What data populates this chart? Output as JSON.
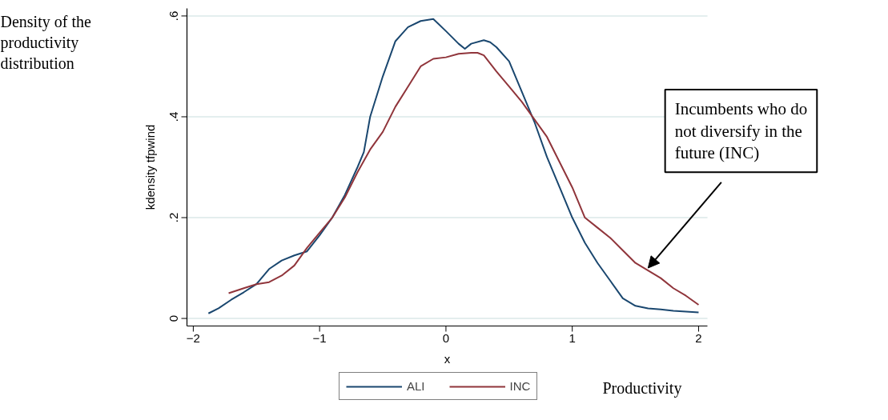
{
  "chart_data": {
    "type": "line",
    "xlabel": "x",
    "ylabel": "kdensity tfpwind",
    "xlim": [
      -2.05,
      2.07
    ],
    "ylim": [
      -0.015,
      0.615
    ],
    "xticks": [
      {
        "value": -2,
        "label": "−2"
      },
      {
        "value": -1,
        "label": "−1"
      },
      0,
      1,
      2
    ],
    "yticks": [
      0,
      {
        "value": 0.2,
        "label": ".2"
      },
      {
        "value": 0.4,
        "label": ".4"
      },
      {
        "value": 0.6,
        "label": ".6"
      }
    ],
    "grid": "y",
    "legend": "bottom",
    "line_style": "solid",
    "series": [
      {
        "name": "ALI",
        "color": "#1a476f",
        "x": [
          -1.88,
          -1.8,
          -1.7,
          -1.6,
          -1.5,
          -1.4,
          -1.3,
          -1.2,
          -1.1,
          -1.0,
          -0.9,
          -0.8,
          -0.7,
          -0.65,
          -0.6,
          -0.5,
          -0.4,
          -0.3,
          -0.2,
          -0.1,
          0.0,
          0.1,
          0.15,
          0.2,
          0.3,
          0.35,
          0.4,
          0.5,
          0.6,
          0.7,
          0.8,
          0.9,
          1.0,
          1.1,
          1.2,
          1.3,
          1.4,
          1.5,
          1.6,
          1.7,
          1.8,
          2.0
        ],
        "values": [
          0.01,
          0.02,
          0.037,
          0.052,
          0.068,
          0.098,
          0.115,
          0.125,
          0.133,
          0.165,
          0.2,
          0.245,
          0.3,
          0.33,
          0.4,
          0.48,
          0.55,
          0.578,
          0.59,
          0.594,
          0.57,
          0.545,
          0.535,
          0.545,
          0.552,
          0.548,
          0.538,
          0.51,
          0.45,
          0.39,
          0.32,
          0.26,
          0.2,
          0.15,
          0.11,
          0.075,
          0.04,
          0.025,
          0.02,
          0.018,
          0.015,
          0.012
        ]
      },
      {
        "name": "INC",
        "color": "#90353b",
        "x": [
          -1.72,
          -1.6,
          -1.5,
          -1.4,
          -1.3,
          -1.2,
          -1.1,
          -1.0,
          -0.9,
          -0.8,
          -0.7,
          -0.6,
          -0.5,
          -0.4,
          -0.3,
          -0.2,
          -0.1,
          0.0,
          0.1,
          0.2,
          0.25,
          0.3,
          0.4,
          0.5,
          0.6,
          0.7,
          0.8,
          0.9,
          1.0,
          1.1,
          1.2,
          1.3,
          1.4,
          1.5,
          1.6,
          1.7,
          1.8,
          1.9,
          2.0
        ],
        "values": [
          0.05,
          0.06,
          0.068,
          0.072,
          0.085,
          0.105,
          0.14,
          0.17,
          0.2,
          0.24,
          0.29,
          0.335,
          0.37,
          0.42,
          0.46,
          0.5,
          0.515,
          0.518,
          0.525,
          0.527,
          0.527,
          0.522,
          0.49,
          0.46,
          0.43,
          0.395,
          0.36,
          0.31,
          0.26,
          0.2,
          0.18,
          0.16,
          0.135,
          0.11,
          0.095,
          0.08,
          0.06,
          0.045,
          0.027
        ]
      }
    ],
    "annotations": [
      {
        "text": "Incumbents who do not diversify in the future (INC)",
        "x": 1.6,
        "y": 0.1
      },
      "Density of the productivity distribution",
      "Productivity"
    ]
  }
}
